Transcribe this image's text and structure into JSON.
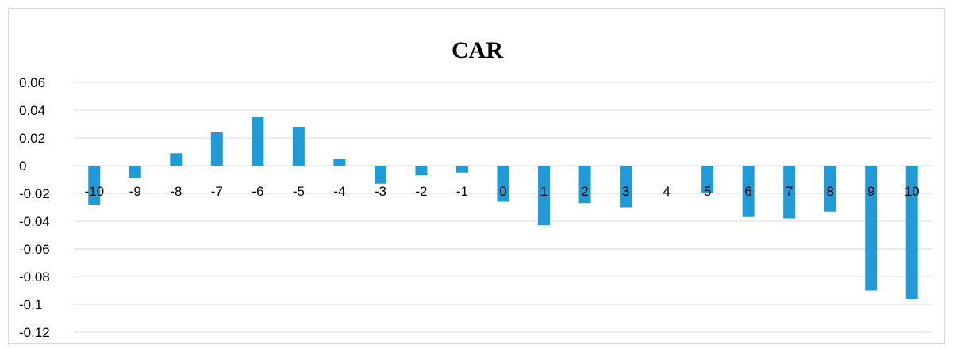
{
  "chart_data": {
    "type": "bar",
    "title": "CAR",
    "categories": [
      "-10",
      "-9",
      "-8",
      "-7",
      "-6",
      "-5",
      "-4",
      "-3",
      "-2",
      "-1",
      "0",
      "1",
      "2",
      "3",
      "4",
      "5",
      "6",
      "7",
      "8",
      "9",
      "10"
    ],
    "values": [
      -0.028,
      -0.009,
      0.009,
      0.024,
      0.035,
      0.028,
      0.005,
      -0.013,
      -0.007,
      -0.005,
      -0.026,
      -0.043,
      -0.027,
      -0.03,
      0.0,
      -0.02,
      -0.037,
      -0.038,
      -0.033,
      -0.09,
      -0.096
    ],
    "ylim": [
      -0.12,
      0.06
    ],
    "yticks": [
      "0.06",
      "0.04",
      "0.02",
      "0",
      "-0.02",
      "-0.04",
      "-0.06",
      "-0.08",
      "-0.1",
      "-0.12"
    ],
    "xlabel": "",
    "ylabel": "",
    "grid": true,
    "bar_color": "#1f9bd7",
    "grid_color": "#d9d9d9"
  }
}
